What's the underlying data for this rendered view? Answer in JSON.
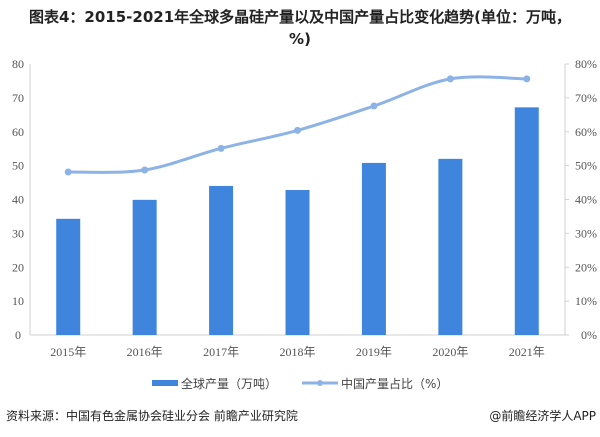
{
  "title": "图表4：2015-2021年全球多晶硅产量以及中国产量占比变化趋势(单位：万吨，%)",
  "source": "资料来源：中国有色金属协会硅业分会 前瞻产业研究院",
  "app_credit": "@前瞻经济学人APP",
  "colors": {
    "bar": "#3f85de",
    "line": "#8db3e6",
    "axis": "#d0d0d0",
    "text": "#555555"
  },
  "chart_data": {
    "type": "bar+line",
    "title": "图表4：2015-2021年全球多晶硅产量以及中国产量占比变化趋势(单位：万吨，%)",
    "categories": [
      "2015年",
      "2016年",
      "2017年",
      "2018年",
      "2019年",
      "2020年",
      "2021年"
    ],
    "series": [
      {
        "name": "全球产量（万吨）",
        "type": "bar",
        "axis": "left",
        "values": [
          34.3,
          39.9,
          44.0,
          42.8,
          50.8,
          52.0,
          67.2
        ]
      },
      {
        "name": "中国产量占比（%）",
        "type": "line",
        "axis": "right",
        "values": [
          48.1,
          48.7,
          55.1,
          60.4,
          67.6,
          75.6,
          75.6
        ]
      }
    ],
    "ylim": [
      0,
      80
    ],
    "y2lim": [
      0,
      80
    ],
    "yticks": [
      "0",
      "10",
      "20",
      "30",
      "40",
      "50",
      "60",
      "70",
      "80"
    ],
    "y2ticks": [
      "0%",
      "10%",
      "20%",
      "30%",
      "40%",
      "50%",
      "60%",
      "70%",
      "80%"
    ],
    "legend": "bottom",
    "grid": false
  }
}
